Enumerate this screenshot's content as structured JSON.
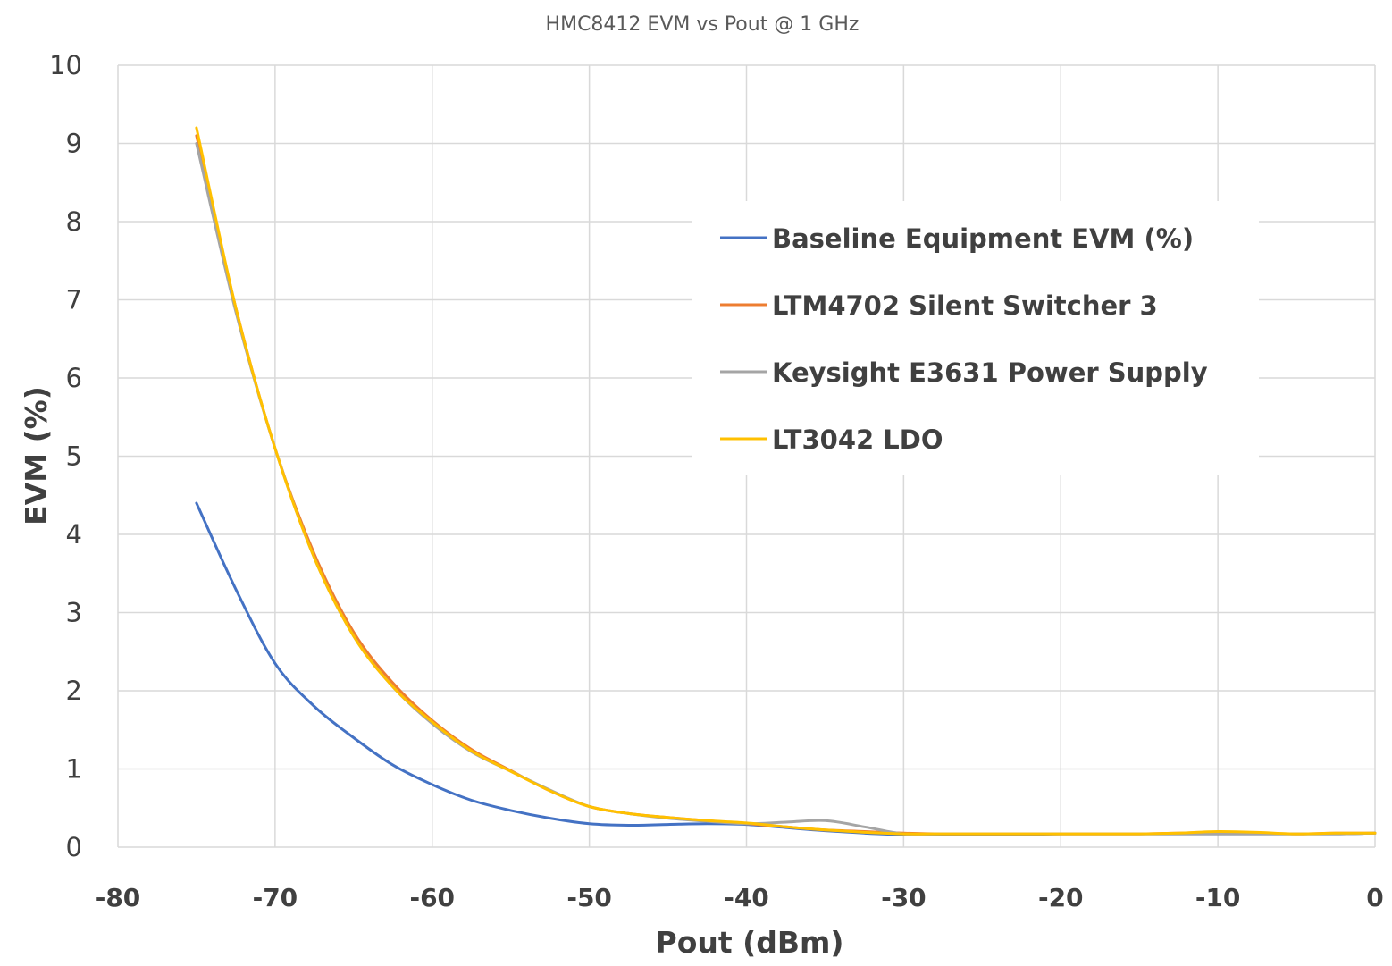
{
  "chart_data": {
    "type": "line",
    "title": "HMC8412 EVM vs Pout @ 1 GHz",
    "xlabel": "Pout (dBm)",
    "ylabel": "EVM (%)",
    "xlim": [
      -80,
      0
    ],
    "ylim": [
      0,
      10
    ],
    "xticks": [
      "-80",
      "-70",
      "-60",
      "-50",
      "-40",
      "-30",
      "-20",
      "-10",
      "0"
    ],
    "yticks": [
      "0",
      "1",
      "2",
      "3",
      "4",
      "5",
      "6",
      "7",
      "8",
      "9",
      "10"
    ],
    "grid": true,
    "legend_position": "right",
    "series": [
      {
        "name": "Baseline Equipment EVM (%)",
        "color": "#4472c4",
        "x": [
          -75,
          -72.5,
          -70,
          -67.5,
          -65,
          -62.5,
          -60,
          -57.5,
          -55,
          -52.5,
          -50,
          -47.5,
          -45,
          -42.5,
          -40,
          -37.5,
          -35,
          -32.5,
          -30,
          -27.5,
          -25,
          -22.5,
          -20,
          -17.5,
          -15,
          -12.5,
          -10,
          -7.5,
          -5,
          -2.5,
          0
        ],
        "y": [
          4.4,
          3.3,
          2.35,
          1.8,
          1.4,
          1.05,
          0.8,
          0.6,
          0.47,
          0.37,
          0.3,
          0.28,
          0.29,
          0.3,
          0.29,
          0.25,
          0.21,
          0.18,
          0.16,
          0.16,
          0.16,
          0.16,
          0.17,
          0.17,
          0.17,
          0.17,
          0.17,
          0.17,
          0.17,
          0.17,
          0.18
        ]
      },
      {
        "name": "LTM4702 Silent Switcher 3",
        "color": "#ed7d31",
        "x": [
          -75,
          -72.5,
          -70,
          -67.5,
          -65,
          -62.5,
          -60,
          -57.5,
          -55,
          -52.5,
          -50,
          -47.5,
          -45,
          -42.5,
          -40,
          -37.5,
          -35,
          -32.5,
          -30,
          -27.5,
          -25,
          -22.5,
          -20,
          -17.5,
          -15,
          -12.5,
          -10,
          -7.5,
          -5,
          -2.5,
          0
        ],
        "y": [
          9.1,
          6.9,
          5.1,
          3.75,
          2.75,
          2.1,
          1.62,
          1.25,
          0.98,
          0.72,
          0.52,
          0.43,
          0.38,
          0.34,
          0.3,
          0.26,
          0.22,
          0.2,
          0.18,
          0.17,
          0.17,
          0.17,
          0.17,
          0.17,
          0.17,
          0.18,
          0.19,
          0.18,
          0.17,
          0.18,
          0.18
        ]
      },
      {
        "name": "Keysight E3631 Power Supply",
        "color": "#a5a5a5",
        "x": [
          -75,
          -72.5,
          -70,
          -67.5,
          -65,
          -62.5,
          -60,
          -57.5,
          -55,
          -52.5,
          -50,
          -47.5,
          -45,
          -42.5,
          -40,
          -37.5,
          -35,
          -32.5,
          -30,
          -27.5,
          -25,
          -22.5,
          -20,
          -17.5,
          -15,
          -12.5,
          -10,
          -7.5,
          -5,
          -2.5,
          0
        ],
        "y": [
          9.0,
          6.85,
          5.1,
          3.7,
          2.7,
          2.05,
          1.58,
          1.22,
          0.97,
          0.73,
          0.52,
          0.43,
          0.37,
          0.33,
          0.3,
          0.32,
          0.34,
          0.26,
          0.17,
          0.17,
          0.17,
          0.17,
          0.17,
          0.17,
          0.17,
          0.17,
          0.17,
          0.17,
          0.17,
          0.17,
          0.18
        ]
      },
      {
        "name": "LT3042 LDO",
        "color": "#ffc000",
        "x": [
          -75,
          -72.5,
          -70,
          -67.5,
          -65,
          -62.5,
          -60,
          -57.5,
          -55,
          -52.5,
          -50,
          -47.5,
          -45,
          -42.5,
          -40,
          -37.5,
          -35,
          -32.5,
          -30,
          -27.5,
          -25,
          -22.5,
          -20,
          -17.5,
          -15,
          -12.5,
          -10,
          -7.5,
          -5,
          -2.5,
          0
        ],
        "y": [
          9.2,
          6.9,
          5.1,
          3.7,
          2.7,
          2.05,
          1.6,
          1.23,
          0.97,
          0.72,
          0.52,
          0.43,
          0.38,
          0.34,
          0.31,
          0.26,
          0.22,
          0.19,
          0.17,
          0.17,
          0.17,
          0.17,
          0.17,
          0.17,
          0.17,
          0.18,
          0.2,
          0.19,
          0.17,
          0.18,
          0.18
        ]
      }
    ]
  }
}
